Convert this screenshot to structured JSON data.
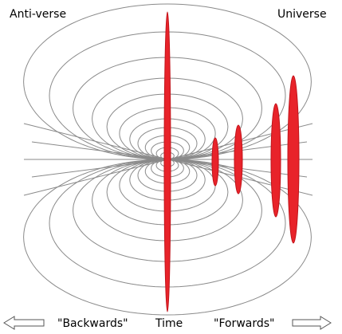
{
  "labels": {
    "top_left": "Anti-verse",
    "top_right": "Universe"
  },
  "axis": {
    "backwards": "\"Backwards\"",
    "time": "Time",
    "forwards": "\"Forwards\""
  }
}
